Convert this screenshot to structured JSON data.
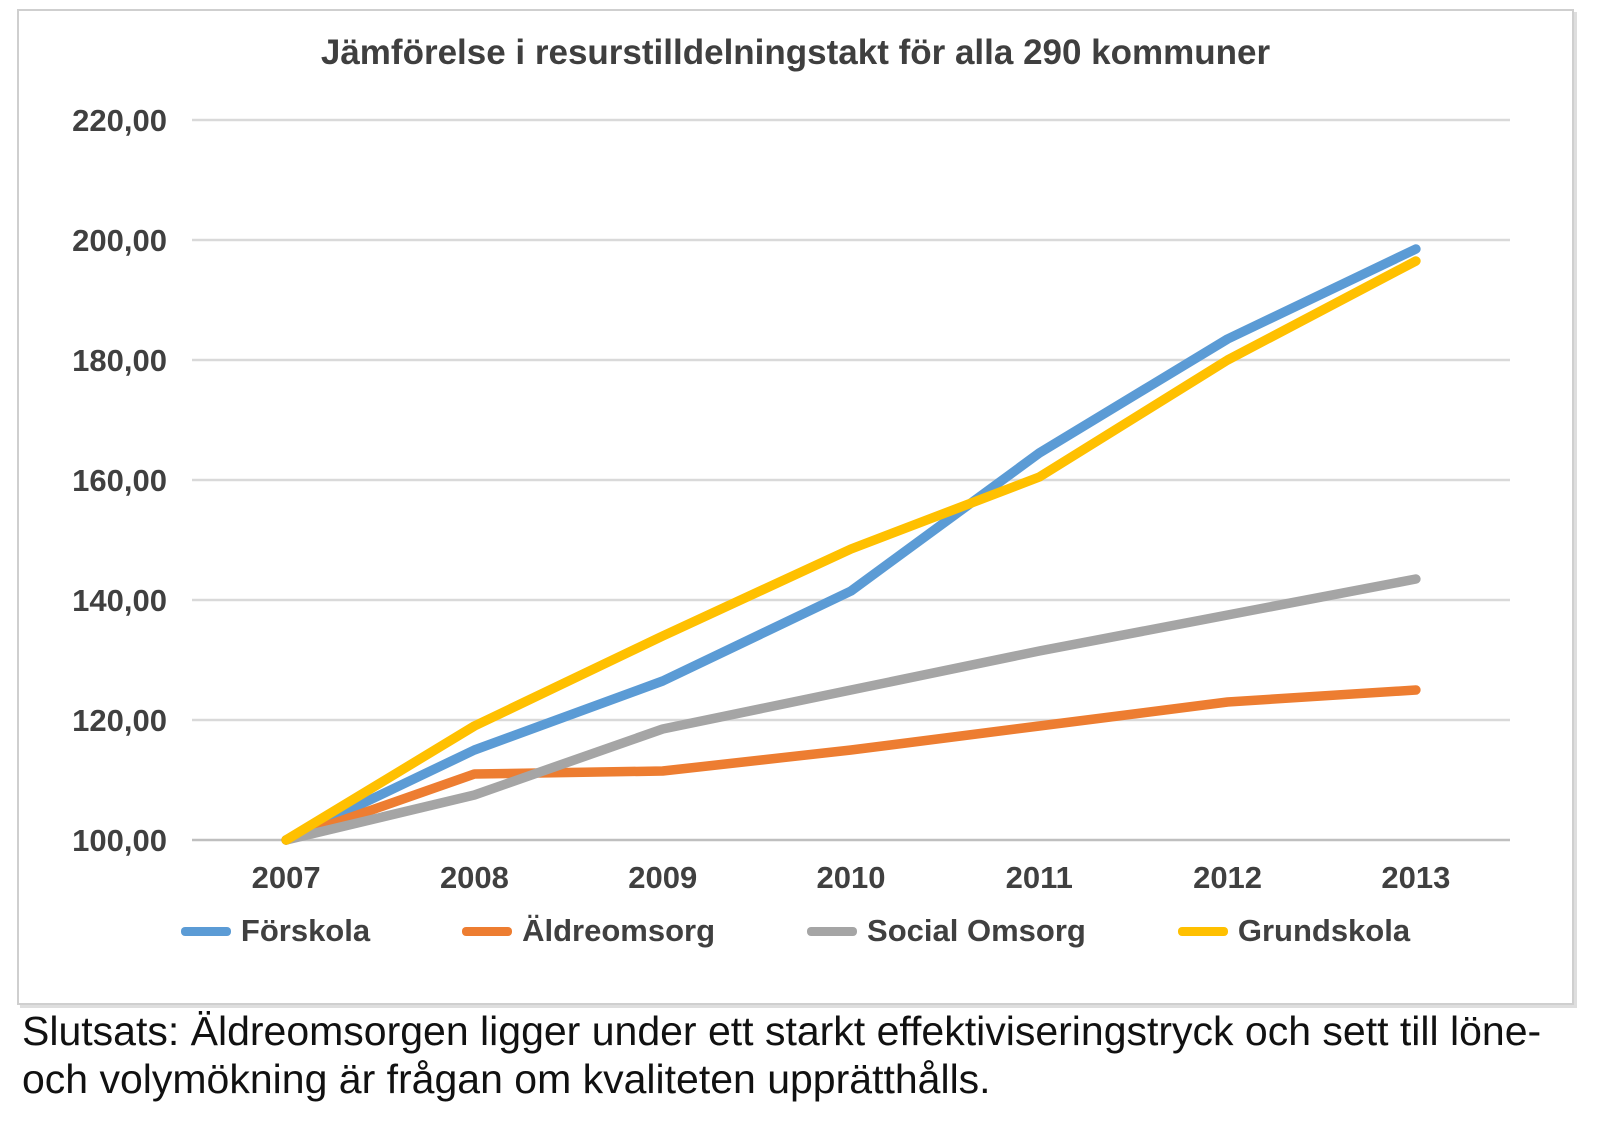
{
  "chart_data": {
    "type": "line",
    "title": "Jämförelse i resurstilldelningstakt för alla 290 kommuner",
    "x": [
      "2007",
      "2008",
      "2009",
      "2010",
      "2011",
      "2012",
      "2013"
    ],
    "series": [
      {
        "name": "Förskola",
        "color": "#5B9BD5",
        "values": [
          100,
          115,
          126.5,
          141.5,
          164.5,
          183.5,
          198.5
        ]
      },
      {
        "name": "Äldreomsorg",
        "color": "#ED7D31",
        "values": [
          100,
          111,
          111.5,
          115,
          119,
          123,
          125
        ]
      },
      {
        "name": "Social Omsorg",
        "color": "#A5A5A5",
        "values": [
          100,
          107.5,
          118.5,
          125,
          131.5,
          137.5,
          143.5
        ]
      },
      {
        "name": "Grundskola",
        "color": "#FFC000",
        "values": [
          100,
          119,
          134,
          148.5,
          160.5,
          180,
          196.5
        ]
      }
    ],
    "ylim": [
      100,
      220
    ],
    "ytick_step": 20,
    "ytick_labels": [
      "100,00",
      "120,00",
      "140,00",
      "160,00",
      "180,00",
      "200,00",
      "220,00"
    ],
    "xlabel": "",
    "ylabel": "",
    "grid": true,
    "legend_position": "bottom",
    "colors_meta": {
      "gridline": "#D9D9D9",
      "axis_line": "#BFBFBF",
      "tick_text": "#404040",
      "title_text": "#3F3F3F"
    }
  },
  "caption": {
    "text": "Slutsats: Äldreomsorgen ligger under ett starkt effektiviseringstryck och sett till löne- och volymökning är frågan om kvaliteten upprätthålls."
  }
}
